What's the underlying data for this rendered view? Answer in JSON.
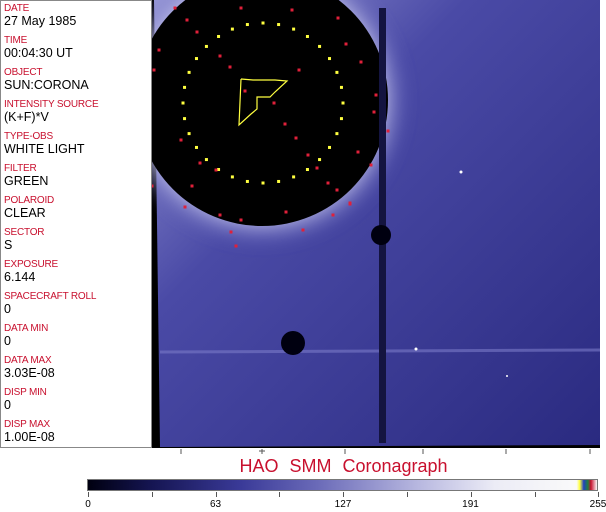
{
  "header_fields": [
    {
      "label": "DATE",
      "value": "27 May 1985"
    },
    {
      "label": "TIME",
      "value": "00:04:30 UT"
    },
    {
      "label": "OBJECT",
      "value": "SUN:CORONA"
    },
    {
      "label": "INTENSITY SOURCE",
      "value": "(K+F)*V"
    },
    {
      "label": "TYPE-OBS",
      "value": "WHITE LIGHT"
    },
    {
      "label": "FILTER",
      "value": "GREEN"
    },
    {
      "label": "POLAROID",
      "value": "CLEAR"
    },
    {
      "label": "SECTOR",
      "value": "S"
    },
    {
      "label": "EXPOSURE",
      "value": "6.144"
    },
    {
      "label": "SPACECRAFT ROLL",
      "value": "0"
    },
    {
      "label": "DATA MIN",
      "value": "0"
    },
    {
      "label": "DATA MAX",
      "value": "3.03E-08"
    },
    {
      "label": "DISP MIN",
      "value": "0"
    },
    {
      "label": "DISP MAX",
      "value": "1.00E-08"
    }
  ],
  "title": "HAO  SMM Coronagraph",
  "colorbar": {
    "ticks": [
      "0",
      "63",
      "127",
      "191",
      "255"
    ],
    "colors": {
      "low": "#000010",
      "mid": "#4a4aa8",
      "high": "#ffffff",
      "accent": "#c8102e"
    }
  },
  "overlay_colors": {
    "grid_dots": "#ffff40",
    "red_markers": "#e0203a"
  }
}
